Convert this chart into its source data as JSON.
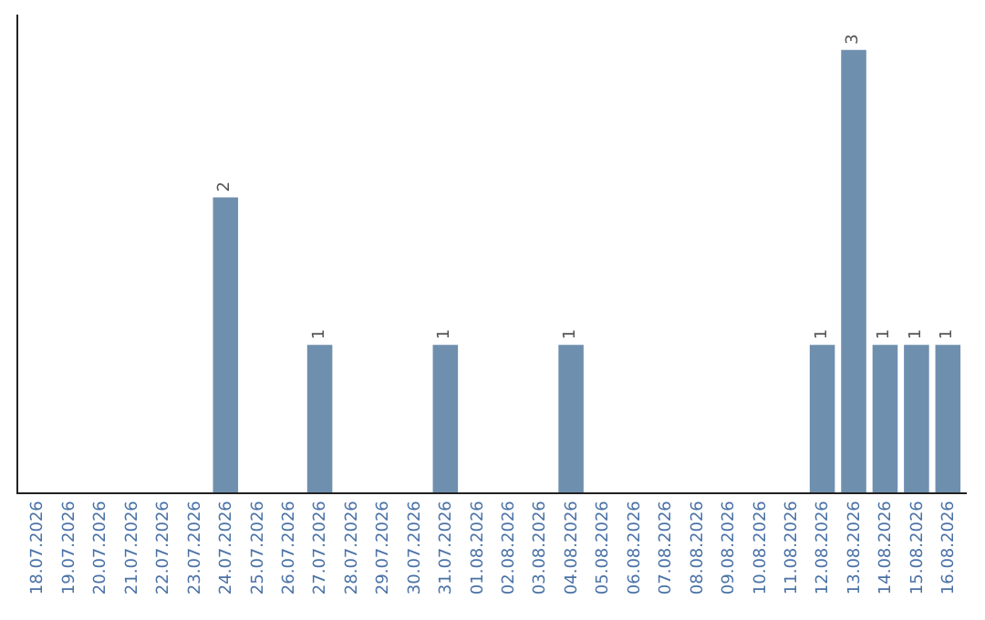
{
  "chart_data": {
    "type": "bar",
    "categories": [
      "18.07.2026",
      "19.07.2026",
      "20.07.2026",
      "21.07.2026",
      "22.07.2026",
      "23.07.2026",
      "24.07.2026",
      "25.07.2026",
      "26.07.2026",
      "27.07.2026",
      "28.07.2026",
      "29.07.2026",
      "30.07.2026",
      "31.07.2026",
      "01.08.2026",
      "02.08.2026",
      "03.08.2026",
      "04.08.2026",
      "05.08.2026",
      "06.08.2026",
      "07.08.2026",
      "08.08.2026",
      "09.08.2026",
      "10.08.2026",
      "11.08.2026",
      "12.08.2026",
      "13.08.2026",
      "14.08.2026",
      "15.08.2026",
      "16.08.2026"
    ],
    "values": [
      0,
      0,
      0,
      0,
      0,
      0,
      2,
      0,
      0,
      1,
      0,
      0,
      0,
      1,
      0,
      0,
      0,
      1,
      0,
      0,
      0,
      0,
      0,
      0,
      0,
      1,
      3,
      1,
      1,
      1
    ],
    "value_labels": [
      null,
      null,
      null,
      null,
      null,
      null,
      "2",
      null,
      null,
      "1",
      null,
      null,
      null,
      "1",
      null,
      null,
      null,
      "1",
      null,
      null,
      null,
      null,
      null,
      null,
      null,
      "1",
      "3",
      "1",
      "1",
      "1"
    ],
    "color": "#6f8fae",
    "tick_labels": "x",
    "legend": false
  }
}
